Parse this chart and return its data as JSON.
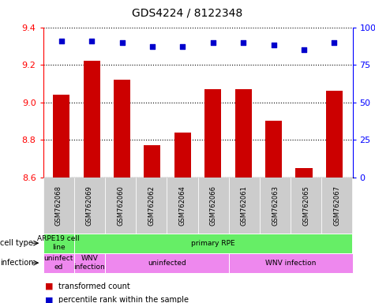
{
  "title": "GDS4224 / 8122348",
  "samples": [
    "GSM762068",
    "GSM762069",
    "GSM762060",
    "GSM762062",
    "GSM762064",
    "GSM762066",
    "GSM762061",
    "GSM762063",
    "GSM762065",
    "GSM762067"
  ],
  "transformed_count": [
    9.04,
    9.22,
    9.12,
    8.77,
    8.84,
    9.07,
    9.07,
    8.9,
    8.65,
    9.06
  ],
  "percentile_rank": [
    91,
    91,
    90,
    87,
    87,
    90,
    90,
    88,
    85,
    90
  ],
  "ylim": [
    8.6,
    9.4
  ],
  "yticks": [
    8.6,
    8.8,
    9.0,
    9.2,
    9.4
  ],
  "right_yticks": [
    0,
    25,
    50,
    75,
    100
  ],
  "bar_color": "#cc0000",
  "dot_color": "#0000cc",
  "cell_groups": [
    {
      "label": "ARPE19 cell\nline",
      "start": 0,
      "end": 0,
      "color": "#66ee66"
    },
    {
      "label": "primary RPE",
      "start": 1,
      "end": 9,
      "color": "#66ee66"
    }
  ],
  "infect_groups": [
    {
      "label": "uninfect\ned",
      "start": 0,
      "end": 0,
      "color": "#ee88ee"
    },
    {
      "label": "WNV\ninfection",
      "start": 1,
      "end": 1,
      "color": "#ee88ee"
    },
    {
      "label": "uninfected",
      "start": 2,
      "end": 5,
      "color": "#ee88ee"
    },
    {
      "label": "WNV infection",
      "start": 6,
      "end": 9,
      "color": "#ee88ee"
    }
  ],
  "legend_items": [
    {
      "color": "#cc0000",
      "label": "transformed count"
    },
    {
      "color": "#0000cc",
      "label": "percentile rank within the sample"
    }
  ],
  "bg_color": "#ffffff",
  "grid_color": "#000000",
  "tick_area_color": "#cccccc"
}
